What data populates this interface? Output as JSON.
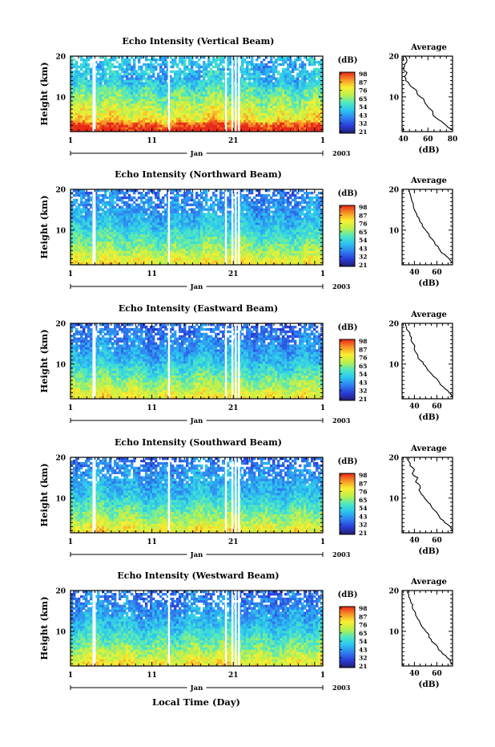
{
  "figure": {
    "xlabel": "Local Time (Day)",
    "month_label": "Jan",
    "year_label": "2003",
    "ylabel": "Height (km)",
    "colorbar_unit": "(dB)",
    "colorbar_ticks": [
      "98",
      "87",
      "76",
      "65",
      "54",
      "43",
      "32",
      "21"
    ],
    "avg_title": "Average",
    "avg_xlabel": "(dB)"
  },
  "chart_data": [
    {
      "type": "heatmap",
      "title": "Echo Intensity (Vertical Beam)",
      "xlabel": "Jan",
      "ylabel": "Height (km)",
      "x_ticks": [
        "1",
        "11",
        "21",
        "1"
      ],
      "xlim": [
        1,
        32
      ],
      "y_ticks": [
        "10",
        "20"
      ],
      "ylim": [
        1.5,
        20
      ],
      "colorbar": {
        "label": "(dB)",
        "ticks": [
          98,
          87,
          76,
          65,
          54,
          43,
          32,
          21
        ],
        "range": [
          21,
          98
        ]
      },
      "average_profile": {
        "title": "Average",
        "xlabel": "(dB)",
        "x_ticks": [
          "40",
          "60",
          "80"
        ],
        "xlim": [
          39,
          80
        ],
        "height": [
          2,
          3,
          4,
          5,
          6,
          7,
          8,
          9,
          10,
          11,
          12,
          13,
          14,
          15,
          16,
          17,
          18,
          19,
          20
        ],
        "db": [
          80,
          75,
          71,
          66,
          64,
          62,
          59,
          57,
          54,
          51,
          49,
          45,
          42,
          41,
          43,
          40,
          41,
          43,
          41
        ]
      }
    },
    {
      "type": "heatmap",
      "title": "Echo Intensity (Northward Beam)",
      "xlabel": "Jan",
      "ylabel": "Height (km)",
      "x_ticks": [
        "1",
        "11",
        "21",
        "1"
      ],
      "xlim": [
        1,
        32
      ],
      "y_ticks": [
        "10",
        "20"
      ],
      "ylim": [
        1.5,
        20
      ],
      "colorbar": {
        "label": "(dB)",
        "ticks": [
          98,
          87,
          76,
          65,
          54,
          43,
          32,
          21
        ],
        "range": [
          21,
          98
        ]
      },
      "average_profile": {
        "title": "Average",
        "xlabel": "(dB)",
        "x_ticks": [
          "40",
          "60"
        ],
        "xlim": [
          29,
          74
        ],
        "height": [
          2,
          3,
          4,
          5,
          6,
          7,
          8,
          9,
          10,
          11,
          12,
          13,
          14,
          15,
          16,
          17,
          18,
          19,
          20
        ],
        "db": [
          74,
          71,
          67,
          63,
          61,
          58,
          55,
          53,
          50,
          47,
          45,
          44,
          42,
          40,
          39,
          38,
          37,
          36,
          35
        ]
      }
    },
    {
      "type": "heatmap",
      "title": "Echo Intensity (Eastward Beam)",
      "xlabel": "Jan",
      "ylabel": "Height (km)",
      "x_ticks": [
        "1",
        "11",
        "21",
        "1"
      ],
      "xlim": [
        1,
        32
      ],
      "y_ticks": [
        "10",
        "20"
      ],
      "ylim": [
        1.5,
        20
      ],
      "colorbar": {
        "label": "(dB)",
        "ticks": [
          98,
          87,
          76,
          65,
          54,
          43,
          32,
          21
        ],
        "range": [
          21,
          98
        ]
      },
      "average_profile": {
        "title": "Average",
        "xlabel": "(dB)",
        "x_ticks": [
          "40",
          "60"
        ],
        "xlim": [
          29,
          74
        ],
        "height": [
          2,
          3,
          4,
          5,
          6,
          7,
          8,
          9,
          10,
          11,
          12,
          13,
          14,
          15,
          16,
          17,
          18,
          19,
          20
        ],
        "db": [
          74,
          71,
          67,
          63,
          61,
          57,
          54,
          51,
          48,
          45,
          43,
          41,
          40,
          39,
          37,
          36,
          35,
          33,
          32
        ]
      }
    },
    {
      "type": "heatmap",
      "title": "Echo Intensity (Southward Beam)",
      "xlabel": "Jan",
      "ylabel": "Height (km)",
      "x_ticks": [
        "1",
        "11",
        "21",
        "1"
      ],
      "xlim": [
        1,
        32
      ],
      "y_ticks": [
        "10",
        "20"
      ],
      "ylim": [
        1.5,
        20
      ],
      "colorbar": {
        "label": "(dB)",
        "ticks": [
          98,
          87,
          76,
          65,
          54,
          43,
          32,
          21
        ],
        "range": [
          21,
          98
        ]
      },
      "average_profile": {
        "title": "Average",
        "xlabel": "(dB)",
        "x_ticks": [
          "40",
          "60"
        ],
        "xlim": [
          29,
          74
        ],
        "height": [
          2,
          3,
          4,
          5,
          6,
          7,
          8,
          9,
          10,
          11,
          12,
          13,
          14,
          15,
          16,
          17,
          18,
          19,
          20
        ],
        "db": [
          74,
          72,
          67,
          63,
          61,
          58,
          55,
          52,
          49,
          46,
          44,
          45,
          41,
          43,
          38,
          40,
          36,
          35,
          33
        ]
      }
    },
    {
      "type": "heatmap",
      "title": "Echo Intensity (Westward Beam)",
      "xlabel": "Jan",
      "ylabel": "Height (km)",
      "x_ticks": [
        "1",
        "11",
        "21",
        "1"
      ],
      "xlim": [
        1,
        32
      ],
      "y_ticks": [
        "10",
        "20"
      ],
      "ylim": [
        1.5,
        20
      ],
      "colorbar": {
        "label": "(dB)",
        "ticks": [
          98,
          87,
          76,
          65,
          54,
          43,
          32,
          21
        ],
        "range": [
          21,
          98
        ]
      },
      "average_profile": {
        "title": "Average",
        "xlabel": "(dB)",
        "x_ticks": [
          "40",
          "60"
        ],
        "xlim": [
          29,
          74
        ],
        "height": [
          2,
          3,
          4,
          5,
          6,
          7,
          8,
          9,
          10,
          11,
          12,
          13,
          14,
          15,
          16,
          17,
          18,
          19,
          20
        ],
        "db": [
          74,
          72,
          68,
          64,
          61,
          58,
          55,
          53,
          50,
          47,
          45,
          43,
          41,
          40,
          38,
          37,
          36,
          35,
          34
        ]
      }
    }
  ]
}
